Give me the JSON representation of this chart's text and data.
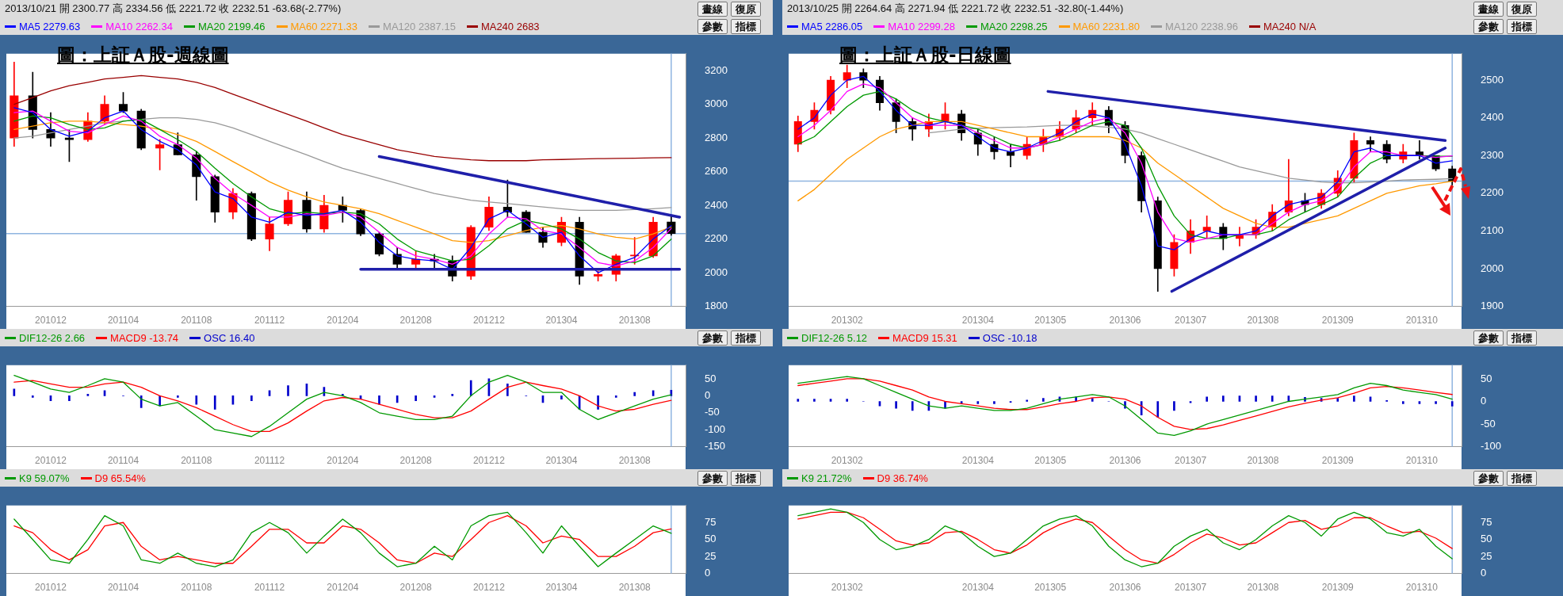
{
  "chart_data": [
    {
      "type": "candlestick",
      "title": "圖：上証Ａ股-週線圖",
      "subtitle": "2013/10/21 開 2300.77 高 2334.56 低 2221.72 收 2232.51 -63.68(-2.77%)",
      "annotations": [
        "畫線",
        "復原",
        "參數",
        "指標"
      ],
      "legend": "top",
      "grid": false,
      "x": [
        "2010-10",
        "2010-11",
        "2010-12",
        "2011-01",
        "2011-02",
        "2011-03",
        "2011-04",
        "2011-05",
        "2011-06",
        "2011-07",
        "2011-08",
        "2011-09",
        "2011-10",
        "2011-11",
        "2011-12",
        "2012-01",
        "2012-02",
        "2012-03",
        "2012-04",
        "2012-05",
        "2012-06",
        "2012-07",
        "2012-08",
        "2012-09",
        "2012-10",
        "2012-11",
        "2012-12",
        "2013-01",
        "2013-02",
        "2013-03",
        "2013-04",
        "2013-05",
        "2013-06",
        "2013-07",
        "2013-08",
        "2013-09",
        "2013-10"
      ],
      "ohlc": [
        [
          2800,
          3250,
          2750,
          3050
        ],
        [
          3050,
          3190,
          2800,
          2850
        ],
        [
          2850,
          2950,
          2750,
          2800
        ],
        [
          2800,
          2850,
          2660,
          2790
        ],
        [
          2790,
          2950,
          2780,
          2900
        ],
        [
          2900,
          3050,
          2880,
          3000
        ],
        [
          3000,
          3070,
          2950,
          2960
        ],
        [
          2960,
          2970,
          2730,
          2740
        ],
        [
          2740,
          2790,
          2610,
          2760
        ],
        [
          2760,
          2830,
          2700,
          2700
        ],
        [
          2700,
          2720,
          2430,
          2570
        ],
        [
          2570,
          2580,
          2300,
          2360
        ],
        [
          2360,
          2500,
          2320,
          2470
        ],
        [
          2470,
          2480,
          2190,
          2200
        ],
        [
          2200,
          2330,
          2130,
          2290
        ],
        [
          2290,
          2480,
          2280,
          2430
        ],
        [
          2430,
          2480,
          2240,
          2260
        ],
        [
          2260,
          2460,
          2240,
          2400
        ],
        [
          2400,
          2450,
          2300,
          2370
        ],
        [
          2370,
          2380,
          2220,
          2230
        ],
        [
          2230,
          2240,
          2100,
          2110
        ],
        [
          2110,
          2150,
          2030,
          2050
        ],
        [
          2050,
          2130,
          2030,
          2080
        ],
        [
          2080,
          2110,
          2030,
          2070
        ],
        [
          2070,
          2100,
          1950,
          1980
        ],
        [
          1980,
          2280,
          1960,
          2270
        ],
        [
          2270,
          2450,
          2250,
          2390
        ],
        [
          2390,
          2550,
          2330,
          2360
        ],
        [
          2360,
          2370,
          2240,
          2240
        ],
        [
          2240,
          2270,
          2150,
          2180
        ],
        [
          2180,
          2330,
          2160,
          2300
        ],
        [
          2300,
          2330,
          1930,
          1980
        ],
        [
          1980,
          2010,
          1950,
          1990
        ],
        [
          1990,
          2110,
          1950,
          2100
        ],
        [
          2100,
          2210,
          2050,
          2100
        ],
        [
          2100,
          2330,
          2090,
          2300
        ],
        [
          2300.77,
          2334.56,
          2221.72,
          2232.51
        ]
      ],
      "colors": [
        "#ff0000",
        "#000000",
        "#000000",
        "#000000",
        "#ff0000",
        "#ff0000",
        "#000000",
        "#000000",
        "#ff0000",
        "#000000",
        "#000000",
        "#000000",
        "#ff0000",
        "#000000",
        "#ff0000",
        "#ff0000",
        "#000000",
        "#ff0000",
        "#000000",
        "#000000",
        "#000000",
        "#000000",
        "#ff0000",
        "#000000",
        "#000000",
        "#ff0000",
        "#ff0000",
        "#000000",
        "#000000",
        "#000000",
        "#ff0000",
        "#000000",
        "#ff0000",
        "#ff0000",
        "#ff0000",
        "#ff0000",
        "#000000"
      ],
      "series": [
        {
          "name": "MA5 2279.63",
          "type": "line",
          "color": "#0000ff",
          "values": [
            2980,
            2950,
            2850,
            2810,
            2840,
            2920,
            2960,
            2850,
            2780,
            2730,
            2640,
            2480,
            2440,
            2330,
            2300,
            2360,
            2340,
            2350,
            2370,
            2300,
            2180,
            2100,
            2080,
            2070,
            2020,
            2150,
            2320,
            2370,
            2290,
            2210,
            2240,
            2100,
            2000,
            2050,
            2090,
            2200,
            2279.63
          ]
        },
        {
          "name": "MA10 2262.34",
          "type": "line",
          "color": "#ff00ff",
          "values": [
            2950,
            2960,
            2900,
            2840,
            2830,
            2880,
            2930,
            2900,
            2810,
            2760,
            2680,
            2560,
            2470,
            2400,
            2330,
            2330,
            2350,
            2340,
            2360,
            2330,
            2240,
            2150,
            2100,
            2080,
            2050,
            2100,
            2230,
            2330,
            2320,
            2250,
            2230,
            2150,
            2060,
            2040,
            2070,
            2150,
            2262.34
          ]
        },
        {
          "name": "MA20 2199.46",
          "type": "line",
          "color": "#009900",
          "values": [
            2900,
            2930,
            2920,
            2880,
            2850,
            2860,
            2900,
            2910,
            2850,
            2790,
            2720,
            2620,
            2530,
            2450,
            2380,
            2350,
            2360,
            2350,
            2360,
            2350,
            2290,
            2200,
            2130,
            2100,
            2070,
            2080,
            2160,
            2260,
            2310,
            2290,
            2260,
            2200,
            2120,
            2070,
            2060,
            2100,
            2199.46
          ]
        },
        {
          "name": "MA60 2271.33",
          "type": "line",
          "color": "#ff9900",
          "values": [
            2850,
            2870,
            2890,
            2900,
            2900,
            2890,
            2880,
            2870,
            2850,
            2820,
            2780,
            2720,
            2660,
            2600,
            2540,
            2490,
            2450,
            2420,
            2400,
            2380,
            2350,
            2310,
            2270,
            2230,
            2190,
            2180,
            2190,
            2220,
            2250,
            2270,
            2280,
            2260,
            2230,
            2210,
            2200,
            2230,
            2271.33
          ]
        },
        {
          "name": "MA120 2387.15",
          "type": "line",
          "color": "#999999",
          "values": [
            2800,
            2810,
            2830,
            2850,
            2870,
            2890,
            2900,
            2910,
            2920,
            2920,
            2910,
            2890,
            2860,
            2820,
            2780,
            2740,
            2700,
            2660,
            2620,
            2590,
            2560,
            2530,
            2500,
            2470,
            2450,
            2430,
            2420,
            2410,
            2400,
            2390,
            2380,
            2370,
            2370,
            2370,
            2375,
            2380,
            2387.15
          ]
        },
        {
          "name": "MA240 2683",
          "type": "line",
          "color": "#990000",
          "values": [
            3000,
            3040,
            3080,
            3110,
            3130,
            3150,
            3160,
            3170,
            3160,
            3150,
            3130,
            3100,
            3060,
            3020,
            2980,
            2940,
            2900,
            2860,
            2820,
            2790,
            2760,
            2730,
            2710,
            2690,
            2680,
            2670,
            2665,
            2665,
            2665,
            2670,
            2672,
            2675,
            2677,
            2679,
            2680,
            2682,
            2683
          ]
        },
        {
          "type": "line",
          "color": "#1f1faa",
          "x": [
            "2012-06-01",
            "2013-10-15"
          ],
          "values": [
            2690,
            2330
          ]
        },
        {
          "type": "line",
          "color": "#1f1faa",
          "x": [
            "2012-05-01",
            "2013-10-15"
          ],
          "values": [
            2020,
            2020
          ]
        }
      ],
      "ref_lines": [
        {
          "axis": "y",
          "value": 2232.51,
          "color": "#8fb4e0"
        },
        {
          "axis": "x",
          "value": "2013-10-01",
          "color": "#8fb4e0"
        }
      ],
      "xlim": [
        "2010-09-18",
        "2013-10-25"
      ],
      "xticks": [
        {
          "value": "2010-12",
          "label": "201012"
        },
        {
          "value": "2011-04",
          "label": "201104"
        },
        {
          "value": "2011-08",
          "label": "201108"
        },
        {
          "value": "2011-12",
          "label": "201112"
        },
        {
          "value": "2012-04",
          "label": "201204"
        },
        {
          "value": "2012-08",
          "label": "201208"
        },
        {
          "value": "2012-12",
          "label": "201212"
        },
        {
          "value": "2013-04",
          "label": "201304"
        },
        {
          "value": "2013-08",
          "label": "201308"
        }
      ],
      "ylim": [
        1800,
        3300
      ],
      "yticks": [
        1800,
        2000,
        2200,
        2400,
        2600,
        2800,
        3000,
        3200
      ]
    },
    {
      "type": "line",
      "annotations": [
        "參數",
        "指標"
      ],
      "legend": "top",
      "grid": false,
      "x": [
        "2010-10",
        "2010-11",
        "2010-12",
        "2011-01",
        "2011-02",
        "2011-03",
        "2011-04",
        "2011-05",
        "2011-06",
        "2011-07",
        "2011-08",
        "2011-09",
        "2011-10",
        "2011-11",
        "2011-12",
        "2012-01",
        "2012-02",
        "2012-03",
        "2012-04",
        "2012-05",
        "2012-06",
        "2012-07",
        "2012-08",
        "2012-09",
        "2012-10",
        "2012-11",
        "2012-12",
        "2013-01",
        "2013-02",
        "2013-03",
        "2013-04",
        "2013-05",
        "2013-06",
        "2013-07",
        "2013-08",
        "2013-09",
        "2013-10"
      ],
      "series": [
        {
          "name": "DIF12-26 2.66",
          "color": "#009900",
          "values": [
            60,
            40,
            20,
            10,
            30,
            50,
            40,
            -10,
            -30,
            -20,
            -60,
            -100,
            -110,
            -120,
            -90,
            -50,
            -10,
            10,
            0,
            -20,
            -50,
            -60,
            -70,
            -70,
            -60,
            0,
            40,
            60,
            40,
            10,
            10,
            -40,
            -70,
            -50,
            -30,
            -10,
            2.66
          ]
        },
        {
          "name": "MACD9 -13.74",
          "color": "#ff0000",
          "values": [
            40,
            45,
            35,
            25,
            25,
            35,
            40,
            25,
            0,
            -15,
            -35,
            -60,
            -85,
            -105,
            -105,
            -80,
            -45,
            -15,
            -5,
            -10,
            -25,
            -40,
            -55,
            -65,
            -65,
            -45,
            -10,
            25,
            40,
            30,
            20,
            0,
            -30,
            -45,
            -40,
            -25,
            -13.74
          ]
        },
        {
          "name": "OSC 16.40",
          "type": "bar",
          "color": "#0000cc",
          "values": [
            20,
            -5,
            -15,
            -15,
            5,
            15,
            0,
            -35,
            -30,
            -5,
            -25,
            -40,
            -25,
            -15,
            15,
            30,
            35,
            25,
            5,
            -10,
            -25,
            -20,
            -15,
            -5,
            5,
            45,
            50,
            35,
            0,
            -20,
            -10,
            -40,
            -40,
            -5,
            10,
            15,
            16.4
          ]
        }
      ],
      "ref_lines": [
        {
          "axis": "x",
          "value": "2013-10-01",
          "color": "#8fb4e0"
        }
      ],
      "xlim": [
        "2010-09-18",
        "2013-10-25"
      ],
      "xticks": [
        {
          "value": "2010-12",
          "label": "201012"
        },
        {
          "value": "2011-04",
          "label": "201104"
        },
        {
          "value": "2011-08",
          "label": "201108"
        },
        {
          "value": "2011-12",
          "label": "201112"
        },
        {
          "value": "2012-04",
          "label": "201204"
        },
        {
          "value": "2012-08",
          "label": "201208"
        },
        {
          "value": "2012-12",
          "label": "201212"
        },
        {
          "value": "2013-04",
          "label": "201304"
        },
        {
          "value": "2013-08",
          "label": "201308"
        }
      ],
      "ylim": [
        -150,
        90
      ],
      "yticks": [
        -150,
        -100,
        -50,
        0,
        50
      ]
    },
    {
      "type": "line",
      "annotations": [
        "參數",
        "指標"
      ],
      "legend": "top",
      "grid": false,
      "x": [
        "2010-10",
        "2010-11",
        "2010-12",
        "2011-01",
        "2011-02",
        "2011-03",
        "2011-04",
        "2011-05",
        "2011-06",
        "2011-07",
        "2011-08",
        "2011-09",
        "2011-10",
        "2011-11",
        "2011-12",
        "2012-01",
        "2012-02",
        "2012-03",
        "2012-04",
        "2012-05",
        "2012-06",
        "2012-07",
        "2012-08",
        "2012-09",
        "2012-10",
        "2012-11",
        "2012-12",
        "2013-01",
        "2013-02",
        "2013-03",
        "2013-04",
        "2013-05",
        "2013-06",
        "2013-07",
        "2013-08",
        "2013-09",
        "2013-10"
      ],
      "series": [
        {
          "name": "K9 59.07%",
          "color": "#009900",
          "values": [
            80,
            50,
            20,
            15,
            50,
            85,
            70,
            20,
            15,
            30,
            15,
            10,
            20,
            60,
            75,
            60,
            30,
            55,
            80,
            60,
            30,
            10,
            15,
            40,
            20,
            70,
            85,
            90,
            60,
            30,
            70,
            40,
            10,
            30,
            50,
            70,
            59.07
          ]
        },
        {
          "name": "D9 65.54%",
          "color": "#ff0000",
          "values": [
            70,
            60,
            35,
            20,
            35,
            70,
            75,
            40,
            20,
            25,
            20,
            15,
            15,
            40,
            65,
            65,
            45,
            45,
            70,
            65,
            45,
            20,
            15,
            30,
            25,
            50,
            75,
            85,
            70,
            45,
            55,
            50,
            25,
            25,
            40,
            60,
            65.54
          ]
        }
      ],
      "ref_lines": [
        {
          "axis": "x",
          "value": "2013-10-01",
          "color": "#8fb4e0"
        }
      ],
      "xlim": [
        "2010-09-18",
        "2013-10-25"
      ],
      "xticks": [
        {
          "value": "2010-12",
          "label": "201012"
        },
        {
          "value": "2011-04",
          "label": "201104"
        },
        {
          "value": "2011-08",
          "label": "201108"
        },
        {
          "value": "2011-12",
          "label": "201112"
        },
        {
          "value": "2012-04",
          "label": "201204"
        },
        {
          "value": "2012-08",
          "label": "201208"
        },
        {
          "value": "2012-12",
          "label": "201212"
        },
        {
          "value": "2013-04",
          "label": "201304"
        },
        {
          "value": "2013-08",
          "label": "201308"
        }
      ],
      "ylim": [
        0,
        100
      ],
      "yticks": [
        0,
        25,
        50,
        75
      ]
    },
    {
      "type": "candlestick",
      "title": "圖：上証Ａ股-日線圖",
      "subtitle": "2013/10/25 開 2264.64 高 2271.94 低 2221.72 收 2232.51 -32.80(-1.44%)",
      "annotations": [
        "畫線",
        "復原",
        "參數",
        "指標"
      ],
      "legend": "top",
      "grid": false,
      "x": [
        "2013-01-14",
        "2013-01-21",
        "2013-01-28",
        "2013-02-04",
        "2013-02-11",
        "2013-02-18",
        "2013-02-25",
        "2013-03-04",
        "2013-03-11",
        "2013-03-18",
        "2013-03-25",
        "2013-04-01",
        "2013-04-08",
        "2013-04-15",
        "2013-04-22",
        "2013-04-29",
        "2013-05-06",
        "2013-05-13",
        "2013-05-20",
        "2013-05-27",
        "2013-06-03",
        "2013-06-10",
        "2013-06-17",
        "2013-06-24",
        "2013-07-01",
        "2013-07-08",
        "2013-07-15",
        "2013-07-22",
        "2013-07-29",
        "2013-08-05",
        "2013-08-12",
        "2013-08-19",
        "2013-08-26",
        "2013-09-02",
        "2013-09-09",
        "2013-09-16",
        "2013-09-23",
        "2013-09-30",
        "2013-10-07",
        "2013-10-14",
        "2013-10-21"
      ],
      "ohlc": [
        [
          2330,
          2405,
          2310,
          2390
        ],
        [
          2390,
          2440,
          2370,
          2420
        ],
        [
          2420,
          2510,
          2410,
          2500
        ],
        [
          2500,
          2540,
          2480,
          2520
        ],
        [
          2520,
          2530,
          2480,
          2500
        ],
        [
          2500,
          2510,
          2420,
          2440
        ],
        [
          2440,
          2450,
          2360,
          2390
        ],
        [
          2390,
          2400,
          2340,
          2370
        ],
        [
          2370,
          2410,
          2350,
          2390
        ],
        [
          2390,
          2440,
          2370,
          2410
        ],
        [
          2410,
          2420,
          2340,
          2360
        ],
        [
          2360,
          2370,
          2300,
          2330
        ],
        [
          2330,
          2350,
          2290,
          2310
        ],
        [
          2310,
          2330,
          2270,
          2300
        ],
        [
          2300,
          2350,
          2290,
          2330
        ],
        [
          2330,
          2370,
          2310,
          2350
        ],
        [
          2350,
          2390,
          2340,
          2370
        ],
        [
          2370,
          2420,
          2360,
          2400
        ],
        [
          2400,
          2440,
          2380,
          2420
        ],
        [
          2420,
          2430,
          2360,
          2380
        ],
        [
          2380,
          2390,
          2280,
          2300
        ],
        [
          2300,
          2310,
          2150,
          2180
        ],
        [
          2180,
          2190,
          1940,
          2000
        ],
        [
          2000,
          2090,
          1980,
          2070
        ],
        [
          2070,
          2130,
          2040,
          2100
        ],
        [
          2100,
          2140,
          2080,
          2110
        ],
        [
          2110,
          2120,
          2050,
          2080
        ],
        [
          2080,
          2110,
          2060,
          2090
        ],
        [
          2090,
          2130,
          2080,
          2110
        ],
        [
          2110,
          2170,
          2100,
          2150
        ],
        [
          2150,
          2290,
          2140,
          2180
        ],
        [
          2180,
          2200,
          2150,
          2170
        ],
        [
          2170,
          2210,
          2160,
          2200
        ],
        [
          2200,
          2260,
          2190,
          2240
        ],
        [
          2240,
          2360,
          2230,
          2340
        ],
        [
          2340,
          2350,
          2310,
          2330
        ],
        [
          2330,
          2340,
          2280,
          2290
        ],
        [
          2290,
          2330,
          2280,
          2310
        ],
        [
          2310,
          2340,
          2290,
          2300
        ],
        [
          2300,
          2300,
          2260,
          2264.64
        ],
        [
          2264.64,
          2271.94,
          2221.72,
          2232.51
        ]
      ],
      "colors": [
        "#ff0000",
        "#ff0000",
        "#ff0000",
        "#ff0000",
        "#000000",
        "#000000",
        "#000000",
        "#000000",
        "#ff0000",
        "#ff0000",
        "#000000",
        "#000000",
        "#000000",
        "#000000",
        "#ff0000",
        "#ff0000",
        "#ff0000",
        "#ff0000",
        "#ff0000",
        "#000000",
        "#000000",
        "#000000",
        "#000000",
        "#ff0000",
        "#ff0000",
        "#ff0000",
        "#000000",
        "#ff0000",
        "#ff0000",
        "#ff0000",
        "#ff0000",
        "#000000",
        "#ff0000",
        "#ff0000",
        "#ff0000",
        "#000000",
        "#000000",
        "#ff0000",
        "#000000",
        "#000000",
        "#000000"
      ],
      "series": [
        {
          "name": "MA5 2286.05",
          "type": "line",
          "color": "#0000ff",
          "values": [
            2370,
            2400,
            2460,
            2500,
            2510,
            2470,
            2420,
            2380,
            2380,
            2390,
            2380,
            2350,
            2320,
            2310,
            2320,
            2340,
            2360,
            2390,
            2410,
            2400,
            2330,
            2220,
            2060,
            2050,
            2080,
            2100,
            2090,
            2090,
            2100,
            2140,
            2170,
            2180,
            2190,
            2230,
            2310,
            2320,
            2300,
            2300,
            2300,
            2280,
            2286.05
          ]
        },
        {
          "name": "MA10 2299.28",
          "type": "line",
          "color": "#ff00ff",
          "values": [
            2350,
            2380,
            2420,
            2470,
            2490,
            2480,
            2440,
            2400,
            2380,
            2380,
            2380,
            2360,
            2340,
            2320,
            2320,
            2330,
            2350,
            2370,
            2390,
            2400,
            2360,
            2280,
            2150,
            2080,
            2070,
            2080,
            2090,
            2090,
            2090,
            2120,
            2150,
            2170,
            2180,
            2210,
            2270,
            2310,
            2310,
            2300,
            2300,
            2295,
            2299.28
          ]
        },
        {
          "name": "MA20 2298.25",
          "type": "line",
          "color": "#009900",
          "values": [
            2330,
            2350,
            2390,
            2430,
            2460,
            2470,
            2450,
            2420,
            2400,
            2390,
            2380,
            2370,
            2350,
            2330,
            2320,
            2330,
            2340,
            2360,
            2380,
            2390,
            2380,
            2320,
            2220,
            2140,
            2090,
            2080,
            2080,
            2090,
            2090,
            2100,
            2130,
            2150,
            2170,
            2190,
            2240,
            2280,
            2300,
            2300,
            2300,
            2298,
            2298.25
          ]
        },
        {
          "name": "MA60 2231.80",
          "type": "line",
          "color": "#ff9900",
          "values": [
            2180,
            2210,
            2250,
            2290,
            2320,
            2350,
            2370,
            2380,
            2390,
            2390,
            2390,
            2380,
            2370,
            2360,
            2350,
            2350,
            2350,
            2350,
            2350,
            2350,
            2340,
            2320,
            2280,
            2250,
            2220,
            2190,
            2160,
            2140,
            2120,
            2110,
            2110,
            2120,
            2130,
            2140,
            2160,
            2180,
            2200,
            2210,
            2220,
            2225,
            2231.8
          ]
        },
        {
          "name": "MA120 2238.96",
          "type": "line",
          "color": "#999999",
          "values": [
            null,
            null,
            null,
            null,
            null,
            null,
            null,
            null,
            2360,
            2365,
            2370,
            2372,
            2374,
            2375,
            2376,
            2378,
            2380,
            2380,
            2378,
            2375,
            2370,
            2360,
            2345,
            2330,
            2315,
            2300,
            2285,
            2270,
            2260,
            2250,
            2240,
            2235,
            2230,
            2228,
            2228,
            2230,
            2232,
            2235,
            2236,
            2237,
            2238.96
          ]
        },
        {
          "name": "MA240 N/A",
          "type": "line",
          "color": "#990000",
          "values": [
            null,
            null,
            null,
            null,
            null,
            null,
            null,
            null,
            null,
            null,
            null,
            null,
            null,
            null,
            null,
            null,
            null,
            null,
            null,
            null,
            null,
            null,
            null,
            null,
            null,
            null,
            null,
            null,
            null,
            null,
            null,
            null,
            null,
            null,
            null,
            null,
            null,
            null,
            null,
            null,
            null
          ]
        },
        {
          "type": "line",
          "color": "#1f1faa",
          "x": [
            "2013-05-01",
            "2013-10-18"
          ],
          "values": [
            2470,
            2340
          ]
        },
        {
          "type": "line",
          "color": "#1f1faa",
          "x": [
            "2013-06-23",
            "2013-10-18"
          ],
          "values": [
            1940,
            2320
          ]
        }
      ],
      "ref_lines": [
        {
          "axis": "y",
          "value": 2232.51,
          "color": "#8fb4e0"
        },
        {
          "axis": "x",
          "value": "2013-10-21",
          "color": "#8fb4e0"
        }
      ],
      "xlim": [
        "2013-01-10",
        "2013-10-25"
      ],
      "xticks": [
        {
          "value": "2013-02-04",
          "label": "201302"
        },
        {
          "value": "2013-04-01",
          "label": "201304"
        },
        {
          "value": "2013-05-02",
          "label": "201305"
        },
        {
          "value": "2013-06-03",
          "label": "201306"
        },
        {
          "value": "2013-07-01",
          "label": "201307"
        },
        {
          "value": "2013-08-01",
          "label": "201308"
        },
        {
          "value": "2013-09-02",
          "label": "201309"
        },
        {
          "value": "2013-10-08",
          "label": "201310"
        }
      ],
      "ylim": [
        1900,
        2570
      ],
      "yticks": [
        1900,
        2000,
        2100,
        2200,
        2300,
        2400,
        2500
      ]
    },
    {
      "type": "line",
      "annotations": [
        "參數",
        "指標"
      ],
      "legend": "top",
      "grid": false,
      "x": [
        "2013-01-14",
        "2013-01-21",
        "2013-01-28",
        "2013-02-04",
        "2013-02-11",
        "2013-02-18",
        "2013-02-25",
        "2013-03-04",
        "2013-03-11",
        "2013-03-18",
        "2013-03-25",
        "2013-04-01",
        "2013-04-08",
        "2013-04-15",
        "2013-04-22",
        "2013-04-29",
        "2013-05-06",
        "2013-05-13",
        "2013-05-20",
        "2013-05-27",
        "2013-06-03",
        "2013-06-10",
        "2013-06-17",
        "2013-06-24",
        "2013-07-01",
        "2013-07-08",
        "2013-07-15",
        "2013-07-22",
        "2013-07-29",
        "2013-08-05",
        "2013-08-12",
        "2013-08-19",
        "2013-08-26",
        "2013-09-02",
        "2013-09-09",
        "2013-09-16",
        "2013-09-23",
        "2013-09-30",
        "2013-10-07",
        "2013-10-14",
        "2013-10-21"
      ],
      "series": [
        {
          "name": "DIF12-26 5.12",
          "color": "#009900",
          "values": [
            40,
            45,
            50,
            55,
            50,
            35,
            20,
            5,
            -10,
            -15,
            -10,
            -15,
            -20,
            -20,
            -15,
            -5,
            5,
            10,
            15,
            10,
            -10,
            -40,
            -70,
            -75,
            -65,
            -50,
            -40,
            -30,
            -20,
            -10,
            0,
            5,
            10,
            15,
            30,
            40,
            35,
            25,
            20,
            15,
            5.12
          ]
        },
        {
          "name": "MACD9 15.31",
          "color": "#ff0000",
          "values": [
            35,
            40,
            45,
            50,
            50,
            45,
            35,
            25,
            10,
            0,
            -5,
            -10,
            -15,
            -18,
            -18,
            -12,
            -5,
            0,
            8,
            10,
            5,
            -10,
            -35,
            -55,
            -62,
            -60,
            -52,
            -42,
            -32,
            -22,
            -12,
            -4,
            3,
            8,
            18,
            30,
            33,
            30,
            25,
            20,
            15.31
          ]
        },
        {
          "name": "OSC -10.18",
          "type": "bar",
          "color": "#0000cc",
          "values": [
            5,
            5,
            5,
            5,
            0,
            -10,
            -15,
            -20,
            -20,
            -15,
            -5,
            -5,
            -5,
            -2,
            3,
            7,
            10,
            10,
            7,
            0,
            -15,
            -30,
            -35,
            -20,
            -3,
            10,
            12,
            12,
            12,
            12,
            12,
            9,
            7,
            7,
            12,
            10,
            2,
            -5,
            -5,
            -5,
            -10.18
          ]
        }
      ],
      "ref_lines": [
        {
          "axis": "x",
          "value": "2013-10-21",
          "color": "#8fb4e0"
        }
      ],
      "xlim": [
        "2013-01-10",
        "2013-10-25"
      ],
      "xticks": [
        {
          "value": "2013-02-04",
          "label": "201302"
        },
        {
          "value": "2013-04-01",
          "label": "201304"
        },
        {
          "value": "2013-05-02",
          "label": "201305"
        },
        {
          "value": "2013-06-03",
          "label": "201306"
        },
        {
          "value": "2013-07-01",
          "label": "201307"
        },
        {
          "value": "2013-08-01",
          "label": "201308"
        },
        {
          "value": "2013-09-02",
          "label": "201309"
        },
        {
          "value": "2013-10-08",
          "label": "201310"
        }
      ],
      "ylim": [
        -100,
        80
      ],
      "yticks": [
        -100,
        -50,
        0,
        50
      ]
    },
    {
      "type": "line",
      "annotations": [
        "參數",
        "指標"
      ],
      "legend": "top",
      "grid": false,
      "x": [
        "2013-01-14",
        "2013-01-21",
        "2013-01-28",
        "2013-02-04",
        "2013-02-11",
        "2013-02-18",
        "2013-02-25",
        "2013-03-04",
        "2013-03-11",
        "2013-03-18",
        "2013-03-25",
        "2013-04-01",
        "2013-04-08",
        "2013-04-15",
        "2013-04-22",
        "2013-04-29",
        "2013-05-06",
        "2013-05-13",
        "2013-05-20",
        "2013-05-27",
        "2013-06-03",
        "2013-06-10",
        "2013-06-17",
        "2013-06-24",
        "2013-07-01",
        "2013-07-08",
        "2013-07-15",
        "2013-07-22",
        "2013-07-29",
        "2013-08-05",
        "2013-08-12",
        "2013-08-19",
        "2013-08-26",
        "2013-09-02",
        "2013-09-09",
        "2013-09-16",
        "2013-09-23",
        "2013-09-30",
        "2013-10-07",
        "2013-10-14",
        "2013-10-21"
      ],
      "series": [
        {
          "name": "K9 21.72%",
          "color": "#009900",
          "values": [
            85,
            90,
            95,
            90,
            75,
            50,
            35,
            40,
            50,
            70,
            60,
            40,
            25,
            30,
            50,
            70,
            80,
            85,
            70,
            40,
            20,
            10,
            15,
            40,
            55,
            65,
            45,
            35,
            50,
            70,
            85,
            75,
            55,
            80,
            90,
            80,
            60,
            55,
            65,
            40,
            21.72
          ]
        },
        {
          "name": "D9 36.74%",
          "color": "#ff0000",
          "values": [
            80,
            85,
            90,
            90,
            82,
            65,
            48,
            42,
            45,
            60,
            62,
            50,
            35,
            30,
            42,
            60,
            72,
            80,
            75,
            55,
            35,
            20,
            15,
            28,
            45,
            58,
            52,
            42,
            45,
            60,
            75,
            78,
            65,
            70,
            82,
            82,
            70,
            60,
            62,
            52,
            36.74
          ]
        }
      ],
      "ref_lines": [
        {
          "axis": "x",
          "value": "2013-10-21",
          "color": "#8fb4e0"
        }
      ],
      "xlim": [
        "2013-01-10",
        "2013-10-25"
      ],
      "xticks": [
        {
          "value": "2013-02-04",
          "label": "201302"
        },
        {
          "value": "2013-04-01",
          "label": "201304"
        },
        {
          "value": "2013-05-02",
          "label": "201305"
        },
        {
          "value": "2013-06-03",
          "label": "201306"
        },
        {
          "value": "2013-07-01",
          "label": "201307"
        },
        {
          "value": "2013-08-01",
          "label": "201308"
        },
        {
          "value": "2013-09-02",
          "label": "201309"
        },
        {
          "value": "2013-10-08",
          "label": "201310"
        }
      ],
      "ylim": [
        0,
        100
      ],
      "yticks": [
        0,
        25,
        50,
        75
      ]
    }
  ]
}
